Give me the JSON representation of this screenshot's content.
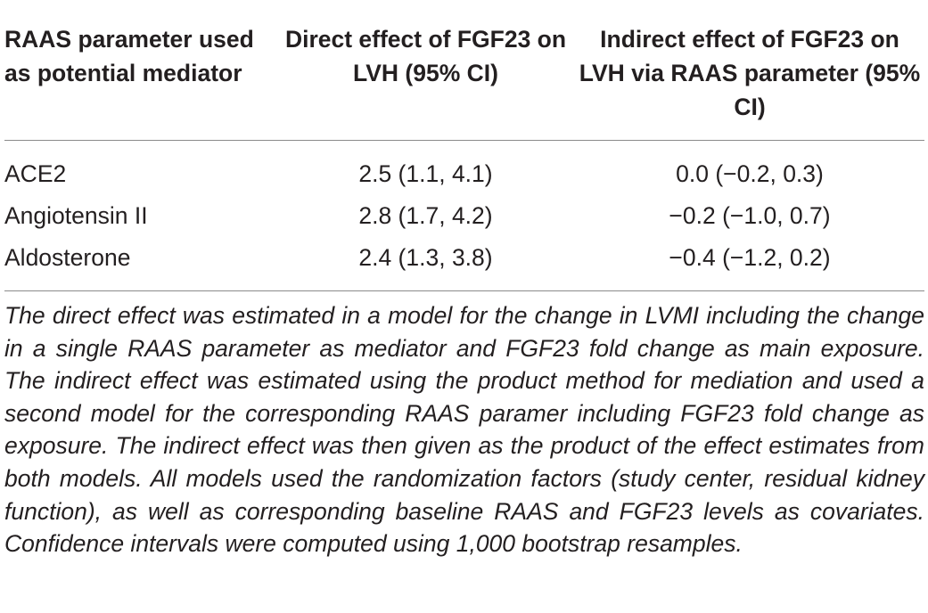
{
  "table": {
    "headers": [
      "RAAS parameter used as potential mediator",
      "Direct effect of FGF23 on LVH (95% CI)",
      "Indirect effect of FGF23 on LVH via RAAS parameter (95% CI)"
    ],
    "rows": [
      {
        "parameter": "ACE2",
        "direct": "2.5 (1.1, 4.1)",
        "indirect": "0.0 (−0.2, 0.3)"
      },
      {
        "parameter": "Angiotensin II",
        "direct": "2.8 (1.7, 4.2)",
        "indirect": "−0.2 (−1.0, 0.7)"
      },
      {
        "parameter": "Aldosterone",
        "direct": "2.4 (1.3, 3.8)",
        "indirect": "−0.4 (−1.2, 0.2)"
      }
    ]
  },
  "footnote": "The direct effect was estimated in a model for the change in LVMI including the change in a single RAAS parameter as mediator and FGF23 fold change as main exposure. The indirect effect was estimated using the product method for mediation and used a second model for the corresponding RAAS param­er including FGF23 fold change as exposure. The indirect effect was then given as the product of the effect estimates from both models. All models used the randomization factors (study center, residual kidney function), as well as corresponding baseline RAAS and FGF23 levels as covariates. Confidence intervals were computed using 1,000 bootstrap resamples."
}
